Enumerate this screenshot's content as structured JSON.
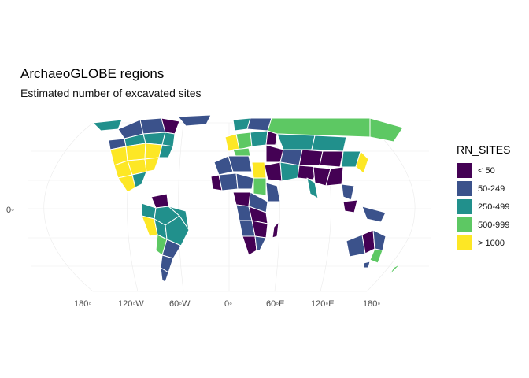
{
  "title": "ArchaeoGLOBE regions",
  "subtitle": "Estimated number of excavated sites",
  "legend": {
    "title": "RN_SITES",
    "items": [
      {
        "label": "< 50",
        "color": "#440154"
      },
      {
        "label": "50-249",
        "color": "#3B528B"
      },
      {
        "label": "250-499",
        "color": "#21908C"
      },
      {
        "label": "500-999",
        "color": "#5DC863"
      },
      {
        "label": "> 1000",
        "color": "#FDE725"
      }
    ]
  },
  "axes": {
    "lon_labels": [
      "180◦",
      "120◦W",
      "60◦W",
      "0◦",
      "60◦E",
      "120◦E",
      "180◦"
    ],
    "lat_labels": [
      "0◦"
    ]
  },
  "map_data": {
    "projection": "Eckert IV",
    "border_color": "#ffffff",
    "graticule": "on"
  }
}
